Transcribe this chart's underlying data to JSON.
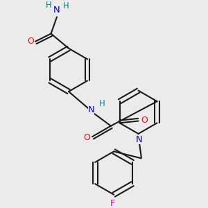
{
  "background_color": "#ebebeb",
  "bond_color": "#1a1a1a",
  "atom_colors": {
    "N": "#0000cc",
    "O": "#ff0000",
    "F": "#cc00cc",
    "H": "#008080",
    "C": "#1a1a1a"
  },
  "figsize": [
    3.0,
    3.0
  ],
  "dpi": 100
}
